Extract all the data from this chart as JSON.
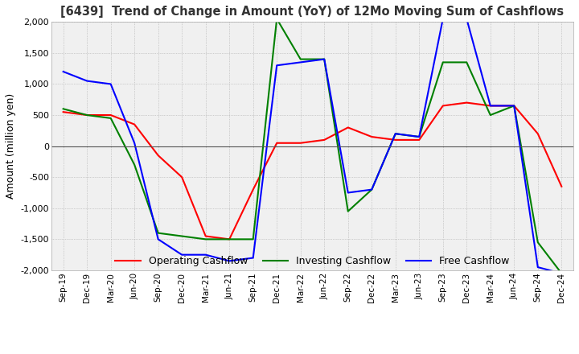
{
  "title": "[6439]  Trend of Change in Amount (YoY) of 12Mo Moving Sum of Cashflows",
  "ylabel": "Amount (million yen)",
  "ylim": [
    -2000,
    2000
  ],
  "yticks": [
    -2000,
    -1500,
    -1000,
    -500,
    0,
    500,
    1000,
    1500,
    2000
  ],
  "x_labels": [
    "Sep-19",
    "Dec-19",
    "Mar-20",
    "Jun-20",
    "Sep-20",
    "Dec-20",
    "Mar-21",
    "Jun-21",
    "Sep-21",
    "Dec-21",
    "Mar-22",
    "Jun-22",
    "Sep-22",
    "Dec-22",
    "Mar-23",
    "Jun-23",
    "Sep-23",
    "Dec-23",
    "Mar-24",
    "Jun-24",
    "Sep-24",
    "Dec-24"
  ],
  "operating": [
    550,
    500,
    500,
    350,
    -150,
    -500,
    -1450,
    -1500,
    -700,
    50,
    50,
    100,
    300,
    150,
    100,
    100,
    650,
    700,
    650,
    650,
    200,
    -650
  ],
  "investing": [
    600,
    500,
    450,
    -300,
    -1400,
    -1450,
    -1500,
    -1500,
    -1500,
    2050,
    1400,
    1400,
    -1050,
    -700,
    200,
    150,
    1350,
    1350,
    500,
    650,
    -1550,
    -2050
  ],
  "free": [
    1200,
    1050,
    1000,
    50,
    -1500,
    -1750,
    -1750,
    -1850,
    -1800,
    1300,
    1350,
    1400,
    -750,
    -700,
    200,
    150,
    2050,
    2050,
    650,
    650,
    -1950,
    -2050
  ],
  "operating_color": "#ff0000",
  "investing_color": "#008000",
  "free_color": "#0000ff",
  "background_color": "#ffffff",
  "plot_bg_color": "#f0f0f0",
  "grid_color": "#aaaaaa"
}
